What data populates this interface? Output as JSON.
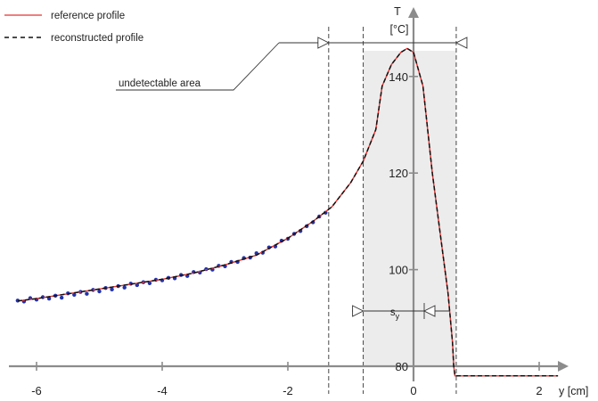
{
  "chart_data": {
    "type": "line",
    "xlabel": "y [cm]",
    "ylabel_line1": "T",
    "ylabel_line2": "[°C]",
    "xlim": [
      -6.3,
      2.3
    ],
    "ylim": [
      79,
      150
    ],
    "x_ticks": [
      -6,
      -4,
      -2,
      0,
      2
    ],
    "x_tick_labels": [
      "-6",
      "-4",
      "-2",
      "0",
      "2"
    ],
    "y_ticks": [
      80,
      100,
      120,
      140
    ],
    "y_tick_labels": [
      "80",
      "100",
      "120",
      "140"
    ],
    "grid": false,
    "legend": {
      "placement": "top-left",
      "entries": [
        {
          "label": "reference profile",
          "color": "#e8312f",
          "style": "solid"
        },
        {
          "label": "reconstructed profile",
          "color": "#111111",
          "style": "dashed"
        }
      ]
    },
    "series": [
      {
        "name": "reference profile",
        "color": "#e8312f",
        "x": [
          -6.3,
          -6.0,
          -5.5,
          -5.0,
          -4.5,
          -4.0,
          -3.5,
          -3.0,
          -2.5,
          -2.0,
          -1.6,
          -1.3,
          -1.0,
          -0.8,
          -0.6,
          -0.5,
          -0.35,
          -0.2,
          -0.1,
          0.0,
          0.15,
          0.3,
          0.45,
          0.55,
          0.62,
          0.64,
          0.66,
          0.7,
          2.3
        ],
        "y": [
          93.5,
          94.0,
          95.0,
          96.0,
          97.0,
          98.0,
          99.3,
          101.0,
          103.0,
          106.5,
          110.0,
          113.0,
          118.0,
          122.5,
          129.0,
          138.0,
          142.5,
          145.0,
          145.8,
          145.0,
          138.0,
          120.0,
          105.0,
          95.0,
          85.0,
          80.0,
          78.0,
          78.0,
          78.0
        ]
      },
      {
        "name": "reconstructed profile",
        "color": "#111111",
        "x": [
          -6.3,
          -6.0,
          -5.5,
          -5.0,
          -4.5,
          -4.0,
          -3.5,
          -3.0,
          -2.5,
          -2.0,
          -1.6,
          -1.3,
          -1.0,
          -0.8,
          -0.6,
          -0.5,
          -0.35,
          -0.2,
          -0.1,
          0.0,
          0.15,
          0.3,
          0.45,
          0.55,
          0.62,
          0.64,
          0.66,
          0.7,
          2.3
        ],
        "y": [
          93.5,
          94.0,
          95.0,
          96.0,
          97.0,
          98.0,
          99.3,
          101.0,
          103.0,
          106.5,
          110.0,
          113.0,
          118.0,
          122.5,
          129.0,
          138.0,
          142.5,
          145.0,
          145.8,
          145.0,
          138.0,
          120.0,
          105.0,
          95.0,
          85.0,
          80.0,
          78.0,
          78.0,
          78.0
        ]
      }
    ],
    "measured_points": {
      "color": "#2233aa",
      "x": [
        -6.3,
        -6.2,
        -6.1,
        -6.0,
        -5.9,
        -5.8,
        -5.7,
        -5.6,
        -5.5,
        -5.4,
        -5.3,
        -5.2,
        -5.1,
        -5.0,
        -4.9,
        -4.8,
        -4.7,
        -4.6,
        -4.5,
        -4.4,
        -4.3,
        -4.2,
        -4.1,
        -4.0,
        -3.9,
        -3.8,
        -3.7,
        -3.6,
        -3.5,
        -3.4,
        -3.3,
        -3.2,
        -3.1,
        -3.0,
        -2.9,
        -2.8,
        -2.7,
        -2.6,
        -2.5,
        -2.4,
        -2.3,
        -2.2,
        -2.1,
        -2.0,
        -1.9,
        -1.8,
        -1.7,
        -1.6,
        -1.5,
        -1.4
      ],
      "y": [
        93.6,
        93.4,
        94.1,
        93.8,
        94.3,
        94.0,
        94.6,
        94.2,
        95.1,
        94.8,
        95.4,
        95.0,
        95.8,
        95.5,
        96.2,
        95.9,
        96.6,
        96.3,
        97.1,
        96.8,
        97.4,
        97.2,
        97.9,
        97.8,
        98.3,
        98.2,
        98.9,
        98.7,
        99.5,
        99.4,
        100.1,
        100.0,
        100.8,
        100.7,
        101.6,
        101.6,
        102.4,
        102.5,
        103.4,
        103.5,
        104.6,
        104.8,
        106.0,
        106.4,
        107.4,
        108.0,
        109.0,
        109.8,
        111.0,
        111.8
      ]
    },
    "shaded_region": {
      "x": [
        -0.8,
        0.68
      ],
      "color": "#ececec"
    },
    "vertical_lines": [
      -1.35,
      -0.8,
      0.68
    ],
    "annotations": {
      "undetectable_label": "undetectable area",
      "sensor_label": "s",
      "sensor_subscript": "y"
    }
  }
}
